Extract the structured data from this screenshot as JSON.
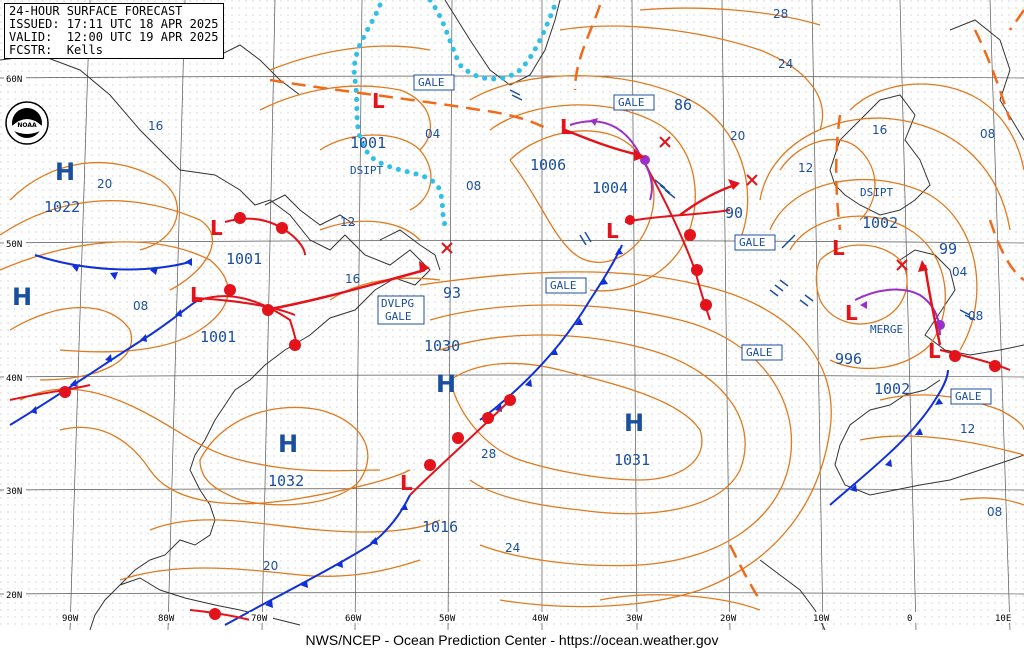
{
  "header": {
    "line1": "24-HOUR SURFACE FORECAST",
    "line2": "ISSUED: 17:11 UTC 18 APR 2025",
    "line3": "VALID:  12:00 UTC 19 APR 2025",
    "line4": "FCSTR:  Kells"
  },
  "footer": "NWS/NCEP - Ocean Prediction Center - https://ocean.weather.gov",
  "logo_text": "NOAA",
  "grid": {
    "lon_labels": [
      "90W",
      "80W",
      "70W",
      "60W",
      "50W",
      "40W",
      "30W",
      "20W",
      "10W",
      "0",
      "10E"
    ],
    "lat_labels": [
      "60N",
      "50N",
      "40N",
      "30N",
      "20N"
    ]
  },
  "colors": {
    "isobar": "#e07a1e",
    "warm": "#e3121b",
    "cold": "#1030d8",
    "occluded": "#9a2fc9",
    "ice": "#2fc0e8",
    "trough": "#f06a1a",
    "text": "#1a4fa0"
  },
  "systems": [
    {
      "type": "H",
      "label": "H",
      "pressure": "1022"
    },
    {
      "type": "H",
      "label": "H",
      "pressure": ""
    },
    {
      "type": "H",
      "label": "H",
      "pressure": "1032"
    },
    {
      "type": "H",
      "label": "H",
      "pressure": "1030"
    },
    {
      "type": "H",
      "label": "H",
      "pressure": "1031"
    },
    {
      "type": "L",
      "label": "L",
      "pressure": "1001"
    },
    {
      "type": "L",
      "label": "L",
      "pressure": "1001"
    },
    {
      "type": "L",
      "label": "L",
      "pressure": "1001"
    },
    {
      "type": "L",
      "label": "L",
      "pressure": "1006"
    },
    {
      "type": "L",
      "label": "L",
      "pressure": "1004"
    },
    {
      "type": "L",
      "label": "L",
      "pressure": "1016"
    },
    {
      "type": "L",
      "label": "L",
      "pressure": "1002"
    },
    {
      "type": "L",
      "label": "L",
      "pressure": "996"
    },
    {
      "type": "L",
      "label": "L",
      "pressure": "1002"
    }
  ],
  "forecast_pressures": [
    "93",
    "86",
    "90",
    "99"
  ],
  "tags": [
    "GALE",
    "GALE",
    "GALE",
    "GALE",
    "GALE",
    "GALE",
    "DVLPG",
    "GALE",
    "DSIPT",
    "DSIPT",
    "MERGE"
  ],
  "isobar_labels": [
    "16",
    "20",
    "08",
    "16",
    "12",
    "04",
    "08",
    "28",
    "24",
    "20",
    "12",
    "16",
    "08",
    "28",
    "24",
    "20",
    "12",
    "04",
    "08",
    "08"
  ]
}
